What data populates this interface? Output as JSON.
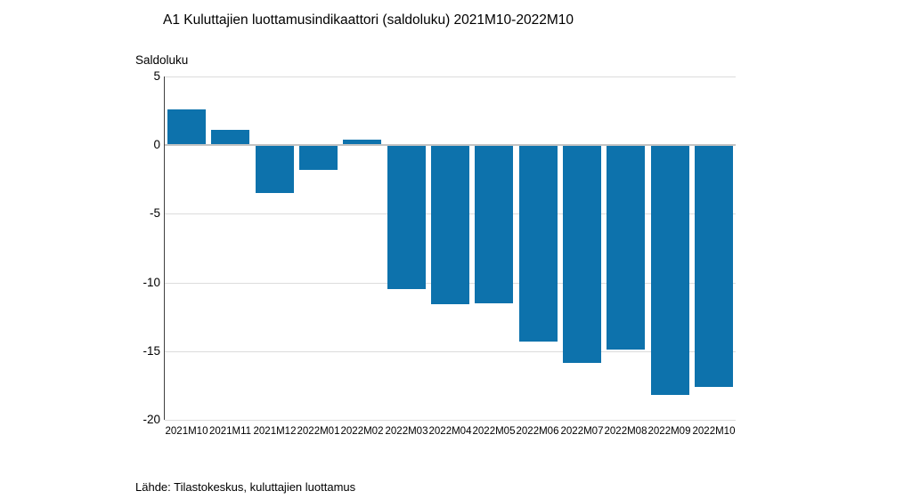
{
  "chart": {
    "title": "A1 Kuluttajien luottamusindikaattori (saldoluku) 2021M10-2022M10",
    "ylabel": "Saldoluku",
    "source": "Lähde: Tilastokeskus, kuluttajien luottamus"
  },
  "chart_data": {
    "type": "bar",
    "title": "A1 Kuluttajien luottamusindikaattori (saldoluku) 2021M10-2022M10",
    "xlabel": "",
    "ylabel": "Saldoluku",
    "categories": [
      "2021M10",
      "2021M11",
      "2021M12",
      "2022M01",
      "2022M02",
      "2022M03",
      "2022M04",
      "2022M05",
      "2022M06",
      "2022M07",
      "2022M08",
      "2022M09",
      "2022M10"
    ],
    "values": [
      2.6,
      1.1,
      -3.5,
      -1.8,
      0.4,
      -10.5,
      -11.6,
      -11.5,
      -14.3,
      -15.9,
      -14.9,
      -18.2,
      -17.6
    ],
    "ylim": [
      -20,
      5
    ],
    "yticks": [
      5,
      0,
      -5,
      -10,
      -15,
      -20
    ],
    "grid": true,
    "legend": "none",
    "bar_color": "#0d72ac",
    "gridline_color": "#dcdcdc",
    "zero_line_color": "#c3c3c3",
    "axis_line_color": "#3f3f3f",
    "source": "Lähde: Tilastokeskus, kuluttajien luottamus"
  }
}
